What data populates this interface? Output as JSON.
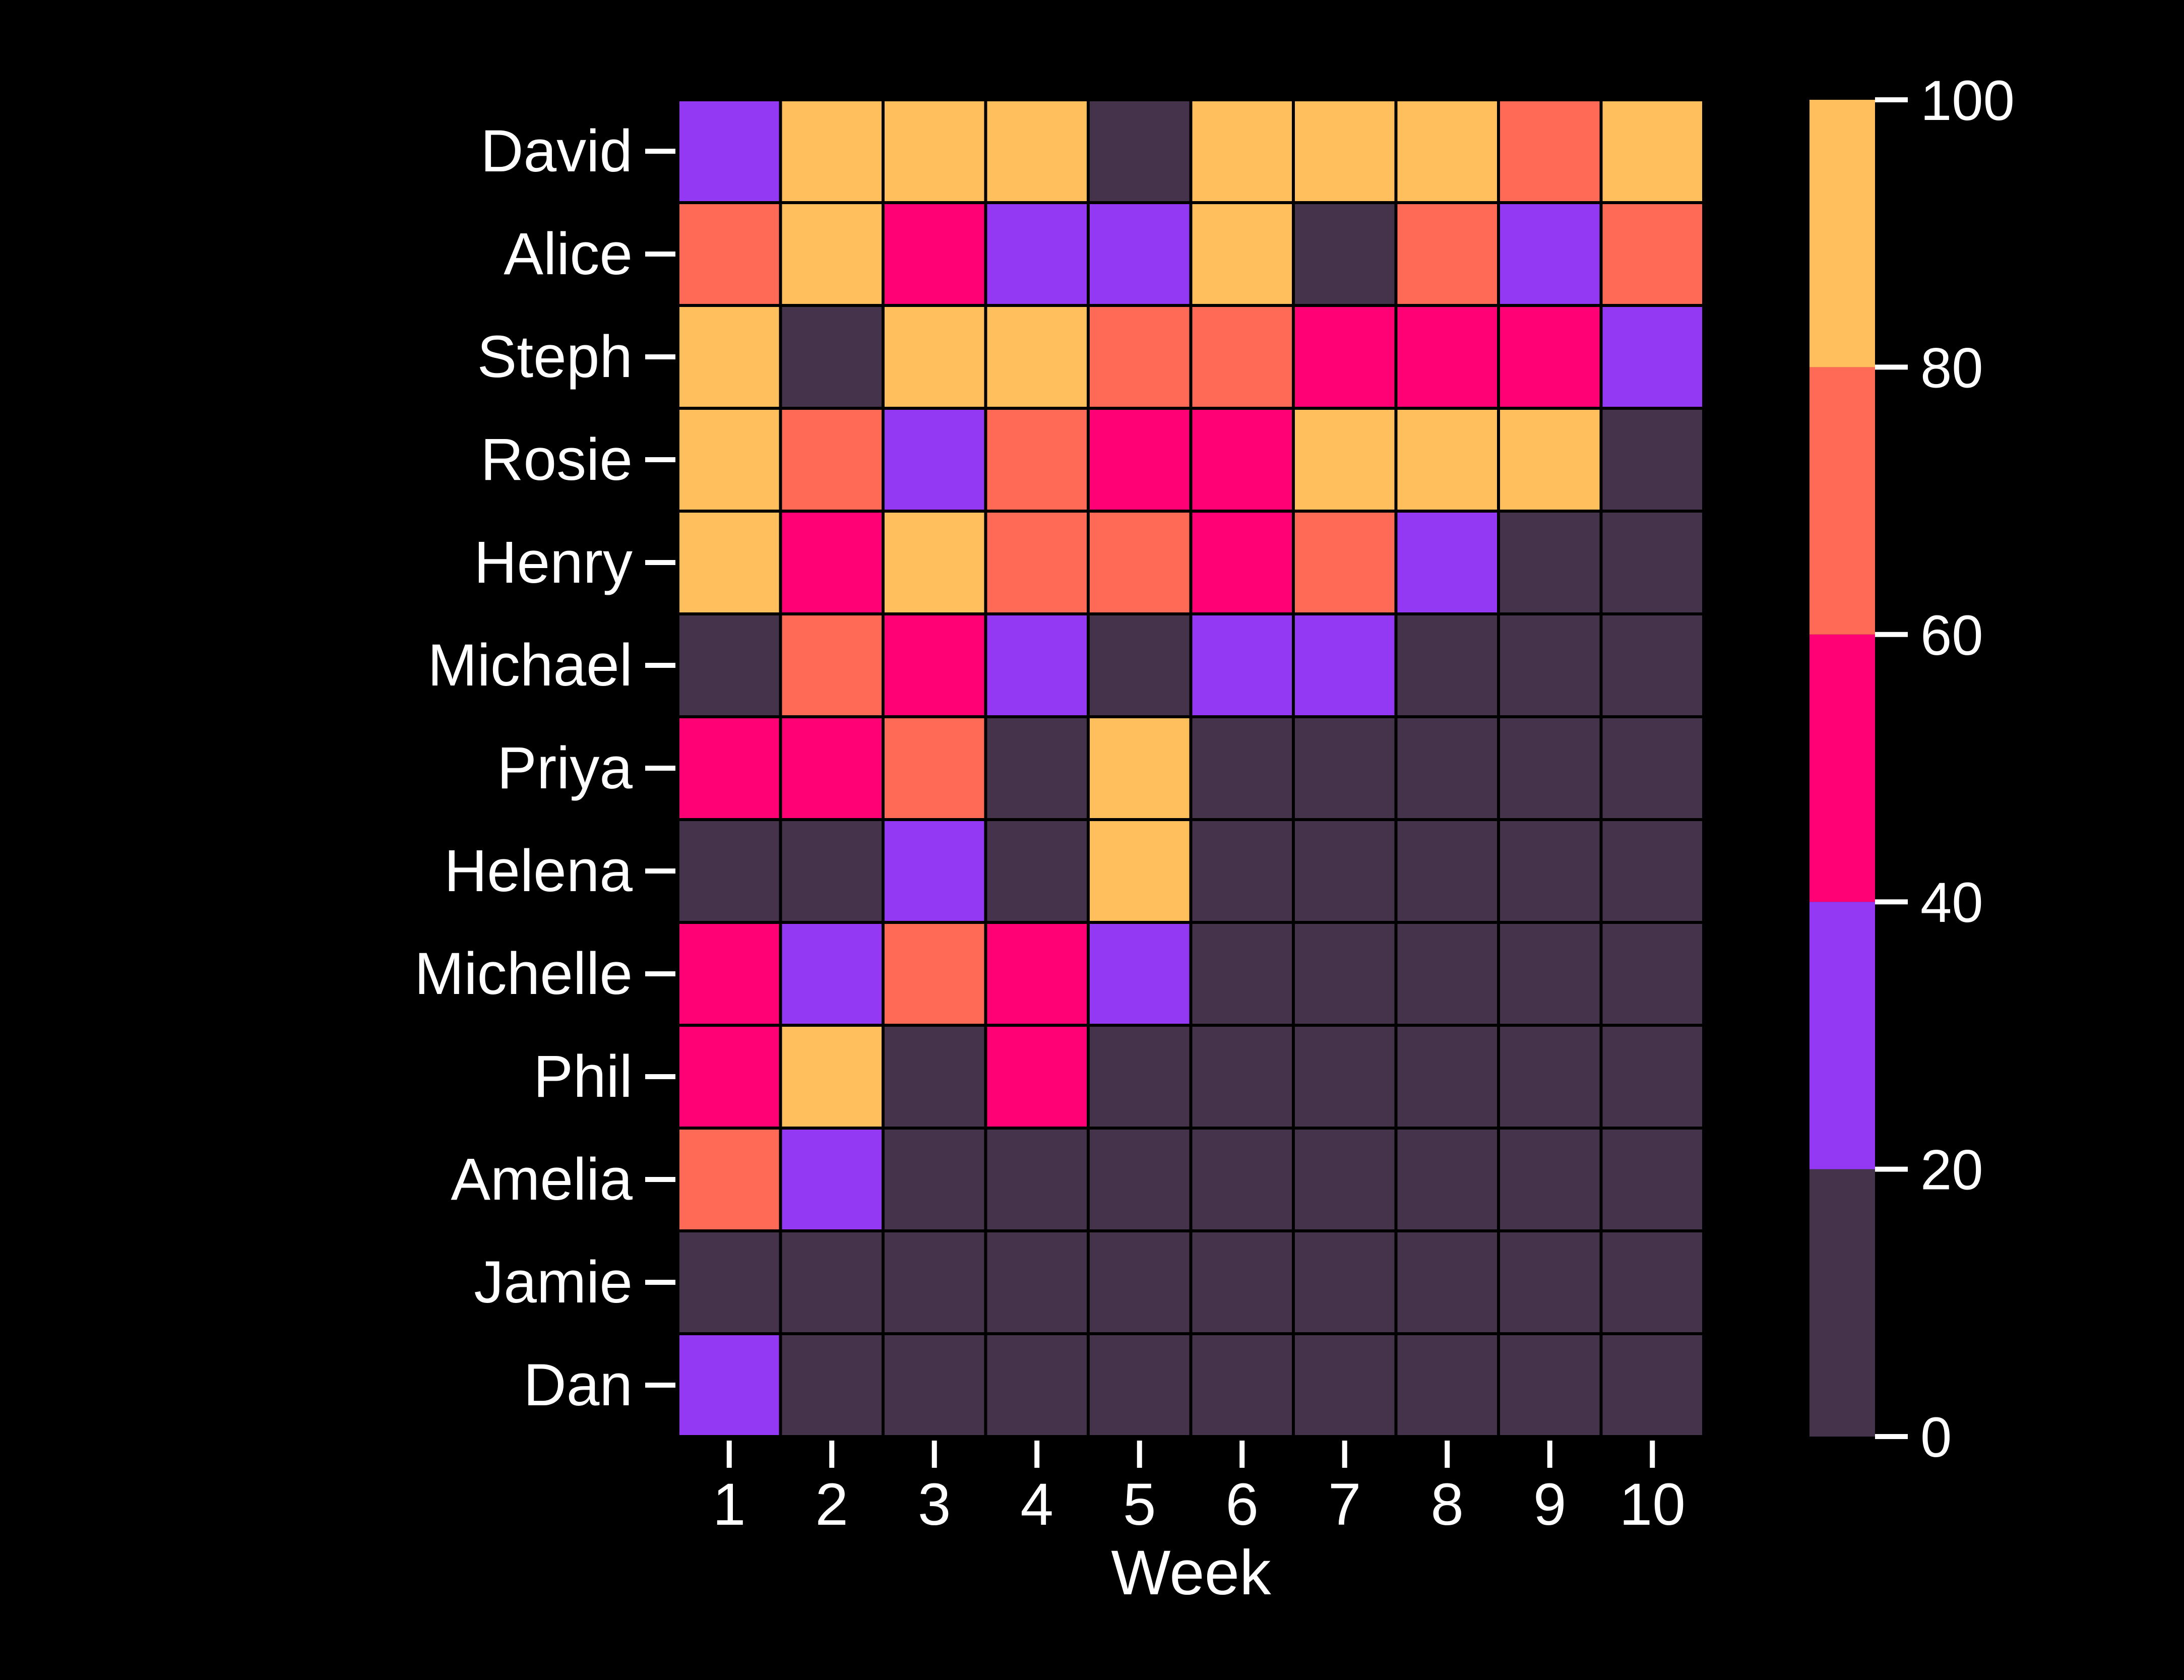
{
  "chart_data": {
    "type": "heatmap",
    "xlabel": "Week",
    "ylabel": "",
    "title": "",
    "x_categories": [
      "1",
      "2",
      "3",
      "4",
      "5",
      "6",
      "7",
      "8",
      "9",
      "10"
    ],
    "y_categories": [
      "David",
      "Alice",
      "Steph",
      "Rosie",
      "Henry",
      "Michael",
      "Priya",
      "Helena",
      "Michelle",
      "Phil",
      "Amelia",
      "Jamie",
      "Dan"
    ],
    "values": [
      [
        30,
        90,
        90,
        90,
        10,
        90,
        90,
        90,
        70,
        90
      ],
      [
        70,
        90,
        50,
        30,
        30,
        90,
        10,
        70,
        30,
        70
      ],
      [
        90,
        10,
        90,
        90,
        70,
        70,
        50,
        50,
        50,
        30
      ],
      [
        90,
        70,
        30,
        70,
        50,
        50,
        90,
        90,
        90,
        10
      ],
      [
        90,
        50,
        90,
        70,
        70,
        50,
        70,
        30,
        10,
        10
      ],
      [
        10,
        70,
        50,
        30,
        10,
        30,
        30,
        10,
        10,
        10
      ],
      [
        50,
        50,
        70,
        10,
        90,
        10,
        10,
        10,
        10,
        10
      ],
      [
        10,
        10,
        30,
        10,
        90,
        10,
        10,
        10,
        10,
        10
      ],
      [
        50,
        30,
        70,
        50,
        30,
        10,
        10,
        10,
        10,
        10
      ],
      [
        50,
        90,
        10,
        50,
        10,
        10,
        10,
        10,
        10,
        10
      ],
      [
        70,
        30,
        10,
        10,
        10,
        10,
        10,
        10,
        10,
        10
      ],
      [
        10,
        10,
        10,
        10,
        10,
        10,
        10,
        10,
        10,
        10
      ],
      [
        30,
        10,
        10,
        10,
        10,
        10,
        10,
        10,
        10,
        10
      ]
    ],
    "colorbar": {
      "range": [
        0,
        100
      ],
      "ticks": [
        "0",
        "20",
        "40",
        "60",
        "80",
        "100"
      ],
      "bins": [
        {
          "min": 0,
          "max": 20,
          "color": "#45324b"
        },
        {
          "min": 20,
          "max": 40,
          "color": "#9339f4"
        },
        {
          "min": 40,
          "max": 60,
          "color": "#ff0075"
        },
        {
          "min": 60,
          "max": 80,
          "color": "#ff6a57"
        },
        {
          "min": 80,
          "max": 100,
          "color": "#ffbf5c"
        }
      ]
    },
    "grid": true,
    "background_color": "#000000",
    "text_color": "#ffffff"
  }
}
